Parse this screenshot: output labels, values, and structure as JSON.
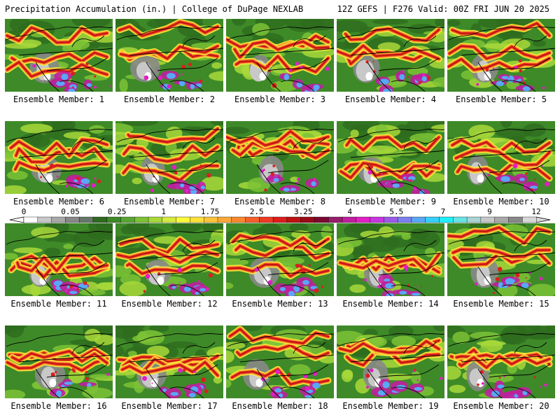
{
  "header": {
    "left": "Precipitation Accumulation (in.) | College of DuPage NEXLAB",
    "right": "12Z GEFS | F276 Valid: 00Z FRI JUN 20 2025"
  },
  "members": [
    {
      "label": "Ensemble Member: 1",
      "seed": 11
    },
    {
      "label": "Ensemble Member: 2",
      "seed": 23
    },
    {
      "label": "Ensemble Member: 3",
      "seed": 37
    },
    {
      "label": "Ensemble Member: 4",
      "seed": 41
    },
    {
      "label": "Ensemble Member: 5",
      "seed": 53
    },
    {
      "label": "Ensemble Member: 6",
      "seed": 67
    },
    {
      "label": "Ensemble Member: 7",
      "seed": 71
    },
    {
      "label": "Ensemble Member: 8",
      "seed": 83
    },
    {
      "label": "Ensemble Member: 9",
      "seed": 97
    },
    {
      "label": "Ensemble Member: 10",
      "seed": 101
    },
    {
      "label": "Ensemble Member: 11",
      "seed": 113
    },
    {
      "label": "Ensemble Member: 12",
      "seed": 127
    },
    {
      "label": "Ensemble Member: 13",
      "seed": 131
    },
    {
      "label": "Ensemble Member: 14",
      "seed": 149
    },
    {
      "label": "Ensemble Member: 15",
      "seed": 151
    },
    {
      "label": "Ensemble Member: 16",
      "seed": 163
    },
    {
      "label": "Ensemble Member: 17",
      "seed": 173
    },
    {
      "label": "Ensemble Member: 18",
      "seed": 181
    },
    {
      "label": "Ensemble Member: 19",
      "seed": 191
    },
    {
      "label": "Ensemble Member: 20",
      "seed": 199
    }
  ],
  "colorbar": {
    "labels": [
      "0",
      "0.05",
      "0.25",
      "1",
      "1.75",
      "2.5",
      "3.25",
      "4",
      "5.5",
      "7",
      "9",
      "12"
    ],
    "colors": [
      "#ffffff",
      "#c8c8c8",
      "#a8a8a8",
      "#888888",
      "#687868",
      "#2e6b1e",
      "#3e8a28",
      "#58a632",
      "#7cc236",
      "#a8d83a",
      "#d6ea3e",
      "#fbfb3a",
      "#fde03a",
      "#fdc43a",
      "#fba83a",
      "#f8882e",
      "#f5602a",
      "#ef3a24",
      "#dd1e1e",
      "#bd1212",
      "#980a18",
      "#7a0a30",
      "#961e6a",
      "#c01e9e",
      "#e21ec6",
      "#c836e0",
      "#9a5ae6",
      "#7a80ee",
      "#58a8f6",
      "#34d0fb",
      "#1ef0fb",
      "#66e4e4",
      "#a8d4d4",
      "#c8c8c8",
      "#a8a8a8",
      "#888888",
      "#d8d8d8"
    ]
  }
}
